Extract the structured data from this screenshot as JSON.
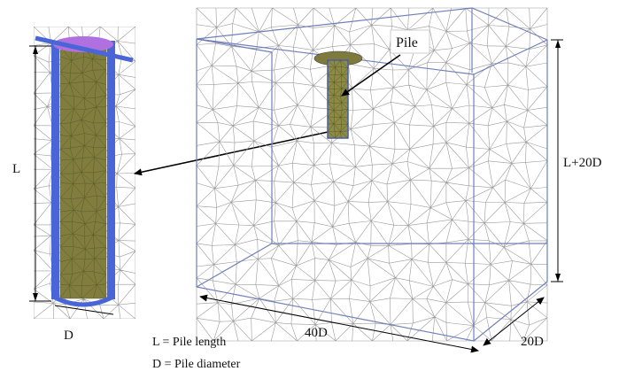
{
  "labels": {
    "pile_callout": "Pile",
    "length": "L",
    "diameter": "D",
    "box_height": "L+20D",
    "box_width": "40D",
    "box_depth": "20D"
  },
  "legend": {
    "line1": "L = Pile length",
    "line2": "D = Pile diameter"
  },
  "colors": {
    "mesh": "#9a9a9a",
    "box_edge": "#6f7fb8",
    "pile_wall": "#7d7a3c",
    "pile_fill": "#8c8a45",
    "pile_blue": "#4a66d6",
    "pile_top": "#b070e0",
    "dimension": "#000000"
  }
}
